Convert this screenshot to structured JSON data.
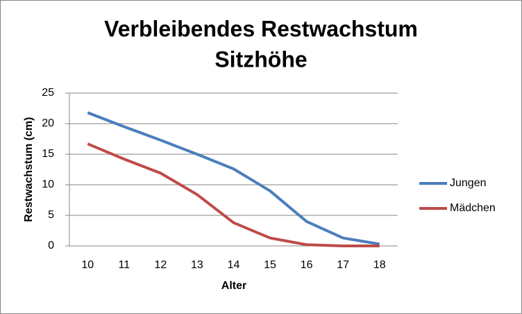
{
  "chart_data": {
    "type": "line",
    "title": [
      "Verbleibendes Restwachstum",
      "Sitzhöhe"
    ],
    "x_label": "Alter",
    "y_label": "Restwachstum (cm)",
    "categories": [
      "10",
      "11",
      "12",
      "13",
      "14",
      "15",
      "16",
      "17",
      "18"
    ],
    "series": [
      {
        "name": "Jungen",
        "color": "#4a7ebb",
        "values": [
          21.8,
          19.5,
          17.3,
          15.0,
          12.6,
          9.0,
          4.0,
          1.3,
          0.3
        ]
      },
      {
        "name": "Mädchen",
        "color": "#be4b48",
        "values": [
          16.7,
          14.2,
          11.9,
          8.4,
          3.8,
          1.3,
          0.2,
          0,
          0
        ]
      }
    ],
    "ylim": [
      0,
      25
    ],
    "yticks": [
      0,
      5,
      10,
      15,
      20,
      25
    ],
    "grid": true,
    "legend": "right"
  }
}
